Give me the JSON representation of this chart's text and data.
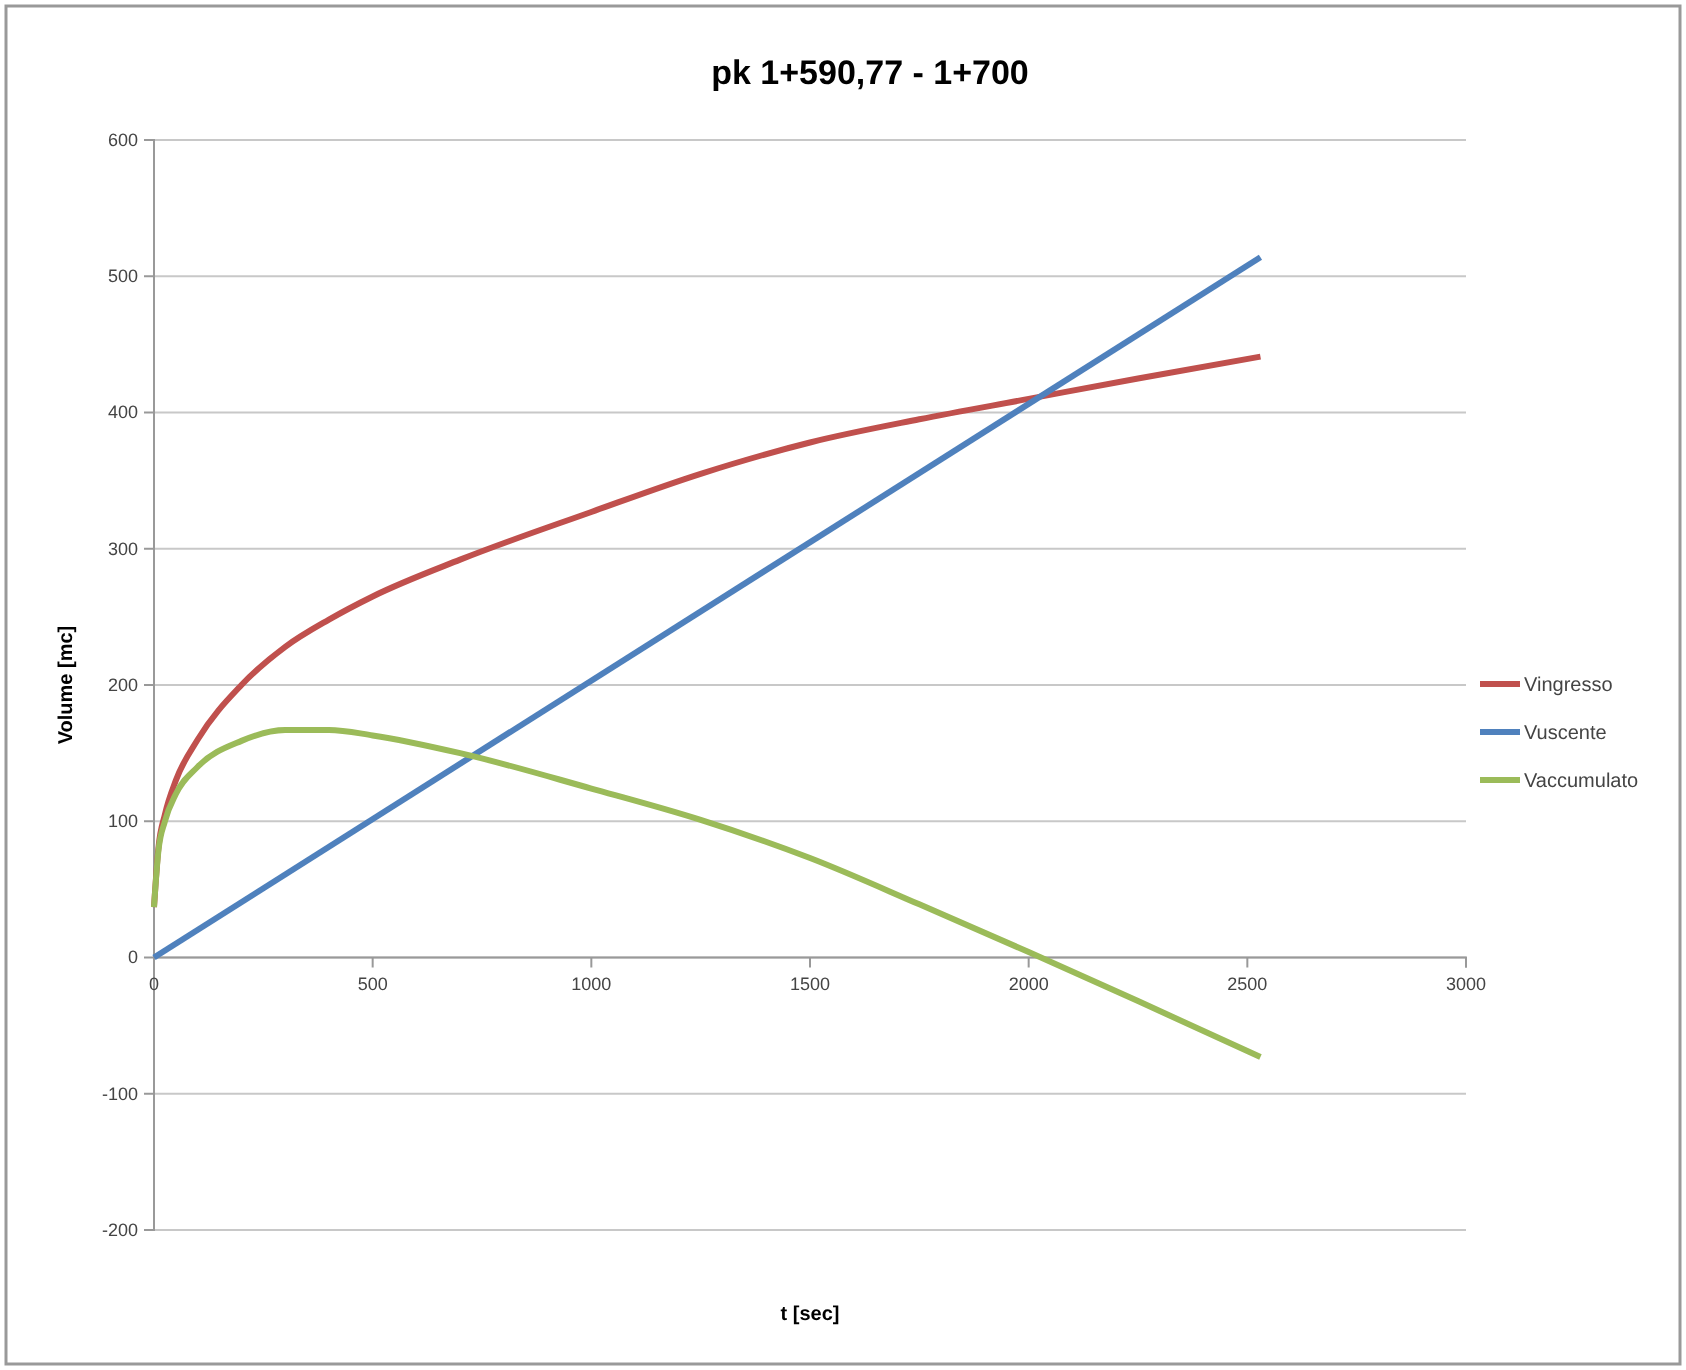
{
  "chart_data": {
    "type": "line",
    "title": "pk 1+590,77 - 1+700",
    "xlabel": "t [sec]",
    "ylabel": "Volume [mc]",
    "x": [
      0,
      10,
      25,
      50,
      100,
      200,
      300,
      400,
      500,
      700,
      1000,
      1250,
      1500,
      1750,
      2000,
      2250,
      2530
    ],
    "series": [
      {
        "name": "Vingresso",
        "color": "#c0504d",
        "values": [
          37,
          80,
          105,
          130,
          160,
          200,
          228,
          248,
          265,
          292,
          327,
          355,
          378,
          395,
          410,
          425,
          441
        ]
      },
      {
        "name": "Vuscente",
        "color": "#4f81bd",
        "x": [
          0,
          2530
        ],
        "values": [
          0,
          514
        ]
      },
      {
        "name": "Vaccumulato",
        "color": "#9bbb59",
        "values": [
          37,
          78,
          100,
          120,
          140,
          159,
          167,
          167,
          163,
          150,
          124,
          101,
          73,
          39,
          4,
          -32,
          -73
        ]
      }
    ],
    "xlim": [
      0,
      3000
    ],
    "xticks": [
      0,
      500,
      1000,
      1500,
      2000,
      2500,
      3000
    ],
    "ylim": [
      -200,
      600
    ],
    "yticks": [
      -200,
      -100,
      0,
      100,
      200,
      300,
      400,
      500,
      600
    ],
    "grid": "y",
    "legend": "right",
    "marker": "none",
    "line_style": "solid"
  }
}
